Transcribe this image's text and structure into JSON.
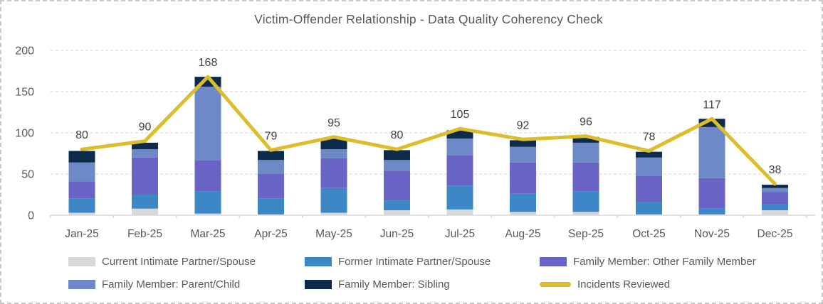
{
  "page": {
    "background": "#ffffff",
    "border_color": "#c9c9c9"
  },
  "chart_data": {
    "type": "combo-stacked-bar-line",
    "title": "Victim-Offender Relationship - Data Quality Coherency Check",
    "categories": [
      "Jan-25",
      "Feb-25",
      "Mar-25",
      "Apr-25",
      "May-25",
      "Jun-25",
      "Jul-25",
      "Aug-25",
      "Sep-25",
      "Oct-25",
      "Nov-25",
      "Dec-25"
    ],
    "bar_series": [
      {
        "name": "Current Intimate Partner/Spouse",
        "color": "#d7d8da",
        "values": [
          3,
          8,
          2,
          1,
          3,
          6,
          7,
          4,
          4,
          1,
          1,
          6
        ]
      },
      {
        "name": "Former Intimate Partner/Spouse",
        "color": "#3d87c6",
        "values": [
          17,
          17,
          27,
          19,
          30,
          12,
          29,
          22,
          25,
          15,
          7,
          7
        ]
      },
      {
        "name": "Family Member: Other Family Member",
        "color": "#6a63c6",
        "values": [
          21,
          45,
          38,
          30,
          36,
          36,
          37,
          38,
          35,
          32,
          37,
          15
        ]
      },
      {
        "name": "Family Member: Parent/Child",
        "color": "#6e89c8",
        "values": [
          23,
          10,
          89,
          17,
          11,
          13,
          20,
          19,
          24,
          22,
          62,
          5
        ]
      },
      {
        "name": "Family Member: Sibling",
        "color": "#0e2b4b",
        "values": [
          14,
          8,
          12,
          11,
          13,
          12,
          10,
          8,
          7,
          7,
          10,
          4
        ]
      }
    ],
    "line_series": {
      "name": "Incidents Reviewed",
      "color": "#dcbe2d",
      "values": [
        80,
        90,
        168,
        79,
        95,
        80,
        105,
        92,
        96,
        78,
        117,
        38
      ],
      "data_labels_shown": true
    },
    "y_axis": {
      "min": 0,
      "max": 200,
      "tick_labels": [
        "0",
        "50",
        "100",
        "150",
        "200"
      ],
      "ticks": [
        0,
        50,
        100,
        150,
        200
      ]
    },
    "legend_position": "bottom",
    "grid": "horizontal-dashed",
    "text_colors": {
      "title": "#595959",
      "axis": "#595959",
      "data_label": "#404040"
    },
    "grid_colors": {
      "gridline": "#d6d6d6",
      "axis_line": "#d2d2d2",
      "tick": "#c9c9c9"
    }
  }
}
